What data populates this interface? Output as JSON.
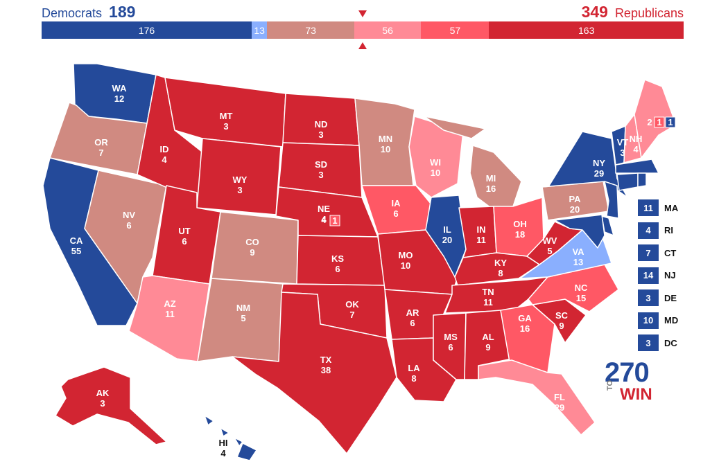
{
  "header": {
    "dem_label": "Democrats",
    "dem_total": "189",
    "rep_total": "349",
    "rep_label": "Republicans"
  },
  "colors": {
    "safe_d": "#244a9a",
    "likely_d": "#8aaffe",
    "tossup": "#d08a81",
    "lean_r": "#ff8a96",
    "likely_r": "#ff5865",
    "safe_r": "#d22532"
  },
  "bar": {
    "segments": [
      {
        "value": 176,
        "label": "176",
        "color": "#244a9a"
      },
      {
        "value": 13,
        "label": "13",
        "color": "#8aaffe"
      },
      {
        "value": 73,
        "label": "73",
        "color": "#d08a81"
      },
      {
        "value": 56,
        "label": "56",
        "color": "#ff8a96"
      },
      {
        "value": 57,
        "label": "57",
        "color": "#ff5865"
      },
      {
        "value": 163,
        "label": "163",
        "color": "#d22532"
      }
    ]
  },
  "states": [
    {
      "abbr": "WA",
      "ev": "12",
      "rating": "safe_d"
    },
    {
      "abbr": "OR",
      "ev": "7",
      "rating": "tossup"
    },
    {
      "abbr": "CA",
      "ev": "55",
      "rating": "safe_d"
    },
    {
      "abbr": "NV",
      "ev": "6",
      "rating": "tossup"
    },
    {
      "abbr": "ID",
      "ev": "4",
      "rating": "safe_r"
    },
    {
      "abbr": "MT",
      "ev": "3",
      "rating": "safe_r"
    },
    {
      "abbr": "WY",
      "ev": "3",
      "rating": "safe_r"
    },
    {
      "abbr": "UT",
      "ev": "6",
      "rating": "safe_r"
    },
    {
      "abbr": "AZ",
      "ev": "11",
      "rating": "lean_r"
    },
    {
      "abbr": "CO",
      "ev": "9",
      "rating": "tossup"
    },
    {
      "abbr": "NM",
      "ev": "5",
      "rating": "tossup"
    },
    {
      "abbr": "ND",
      "ev": "3",
      "rating": "safe_r"
    },
    {
      "abbr": "SD",
      "ev": "3",
      "rating": "safe_r"
    },
    {
      "abbr": "NE",
      "ev": "4",
      "rating": "safe_r"
    },
    {
      "abbr": "KS",
      "ev": "6",
      "rating": "safe_r"
    },
    {
      "abbr": "OK",
      "ev": "7",
      "rating": "safe_r"
    },
    {
      "abbr": "TX",
      "ev": "38",
      "rating": "safe_r"
    },
    {
      "abbr": "MN",
      "ev": "10",
      "rating": "tossup"
    },
    {
      "abbr": "IA",
      "ev": "6",
      "rating": "likely_r"
    },
    {
      "abbr": "MO",
      "ev": "10",
      "rating": "safe_r"
    },
    {
      "abbr": "AR",
      "ev": "6",
      "rating": "safe_r"
    },
    {
      "abbr": "LA",
      "ev": "8",
      "rating": "safe_r"
    },
    {
      "abbr": "WI",
      "ev": "10",
      "rating": "lean_r"
    },
    {
      "abbr": "IL",
      "ev": "20",
      "rating": "safe_d"
    },
    {
      "abbr": "MI",
      "ev": "16",
      "rating": "tossup"
    },
    {
      "abbr": "IN",
      "ev": "11",
      "rating": "safe_r"
    },
    {
      "abbr": "OH",
      "ev": "18",
      "rating": "likely_r"
    },
    {
      "abbr": "KY",
      "ev": "8",
      "rating": "safe_r"
    },
    {
      "abbr": "TN",
      "ev": "11",
      "rating": "safe_r"
    },
    {
      "abbr": "MS",
      "ev": "6",
      "rating": "safe_r"
    },
    {
      "abbr": "AL",
      "ev": "9",
      "rating": "safe_r"
    },
    {
      "abbr": "GA",
      "ev": "16",
      "rating": "likely_r"
    },
    {
      "abbr": "FL",
      "ev": "29",
      "rating": "lean_r"
    },
    {
      "abbr": "SC",
      "ev": "9",
      "rating": "safe_r"
    },
    {
      "abbr": "NC",
      "ev": "15",
      "rating": "likely_r"
    },
    {
      "abbr": "VA",
      "ev": "13",
      "rating": "likely_d"
    },
    {
      "abbr": "WV",
      "ev": "5",
      "rating": "safe_r"
    },
    {
      "abbr": "PA",
      "ev": "20",
      "rating": "tossup"
    },
    {
      "abbr": "NY",
      "ev": "29",
      "rating": "safe_d"
    },
    {
      "abbr": "VT",
      "ev": "3",
      "rating": "safe_d"
    },
    {
      "abbr": "NH",
      "ev": "4",
      "rating": "lean_r"
    },
    {
      "abbr": "ME",
      "ev": "",
      "rating": "lean_r"
    },
    {
      "abbr": "AK",
      "ev": "3",
      "rating": "safe_r"
    },
    {
      "abbr": "HI",
      "ev": "4",
      "rating": "safe_d"
    }
  ],
  "split_votes": {
    "me": [
      "2",
      "1",
      "1"
    ],
    "ne": [
      "4",
      "1"
    ]
  },
  "small_states": [
    {
      "abbr": "MA",
      "ev": "11"
    },
    {
      "abbr": "RI",
      "ev": "4"
    },
    {
      "abbr": "CT",
      "ev": "7"
    },
    {
      "abbr": "NJ",
      "ev": "14"
    },
    {
      "abbr": "DE",
      "ev": "3"
    },
    {
      "abbr": "MD",
      "ev": "10"
    },
    {
      "abbr": "DC",
      "ev": "3"
    }
  ],
  "logo": {
    "num": "270",
    "to": "TO",
    "win": "WIN"
  }
}
